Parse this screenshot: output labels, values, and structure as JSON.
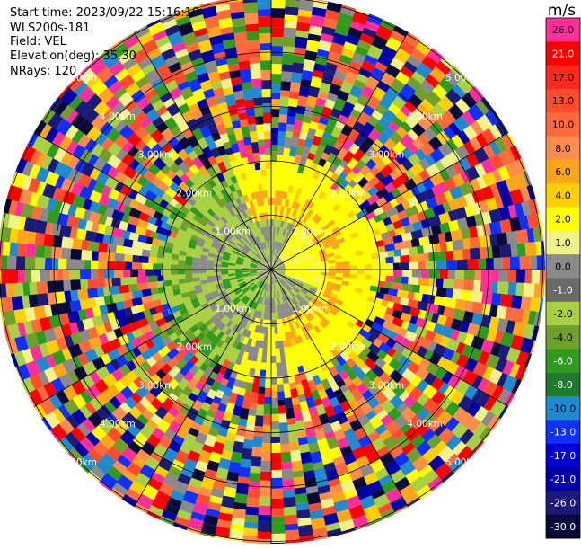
{
  "header": {
    "start_time": "Start time: 2023/09/22 15:16:19",
    "instrument": "WLS200s-181",
    "field": "Field: VEL",
    "elevation": "Elevation(deg): 35.30",
    "nrays": "NRays: 120"
  },
  "range_rings": {
    "labels": [
      "1.00km",
      "2.00km",
      "3.00km",
      "4.00km",
      "5.00km"
    ]
  },
  "colorbar": {
    "unit": "m/s",
    "levels": [
      {
        "label": "26.0",
        "color": "#ff2e9a"
      },
      {
        "label": "21.0",
        "color": "#ff0000"
      },
      {
        "label": "17.0",
        "color": "#ff2a1a"
      },
      {
        "label": "13.0",
        "color": "#ff4b2e"
      },
      {
        "label": "10.0",
        "color": "#ff6a3a"
      },
      {
        "label": "8.0",
        "color": "#ff8c4a"
      },
      {
        "label": "6.0",
        "color": "#ffa51a"
      },
      {
        "label": "4.0",
        "color": "#ffd000"
      },
      {
        "label": "2.0",
        "color": "#ffff00"
      },
      {
        "label": "1.0",
        "color": "#f2f28a"
      },
      {
        "label": "0.0",
        "color": "#8a8a8a"
      },
      {
        "label": "-1.0",
        "color": "#6a6a6a"
      },
      {
        "label": "-2.0",
        "color": "#a8d040"
      },
      {
        "label": "-4.0",
        "color": "#6ea02a"
      },
      {
        "label": "-6.0",
        "color": "#2e9a1e"
      },
      {
        "label": "-8.0",
        "color": "#1f7a2e"
      },
      {
        "label": "-10.0",
        "color": "#1f8ad0"
      },
      {
        "label": "-13.0",
        "color": "#1030ff"
      },
      {
        "label": "-17.0",
        "color": "#0000d8"
      },
      {
        "label": "-21.0",
        "color": "#0000a8"
      },
      {
        "label": "-26.0",
        "color": "#1a1a7a"
      },
      {
        "label": "-30.0",
        "color": "#0a0a3a"
      }
    ]
  }
}
